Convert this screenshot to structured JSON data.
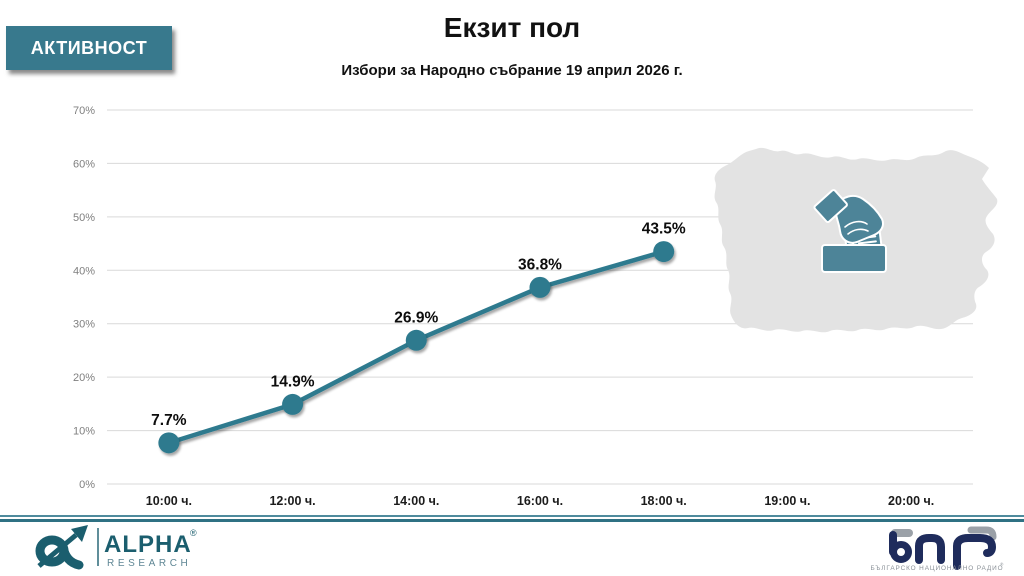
{
  "header": {
    "badge": "АКТИВНОСТ",
    "title": "Екзит пол",
    "subtitle": "Избори за Народно събрание 19 април 2026 г."
  },
  "chart_data": {
    "type": "line",
    "title": "Екзит пол",
    "subtitle": "Избори за Народно събрание 19 април 2026 г.",
    "categories": [
      "10:00 ч.",
      "12:00 ч.",
      "14:00 ч.",
      "16:00 ч.",
      "18:00 ч.",
      "19:00 ч.",
      "20:00 ч."
    ],
    "series": [
      {
        "name": "АКТИВНОСТ",
        "values": [
          7.7,
          14.9,
          26.9,
          36.8,
          43.5,
          null,
          null
        ]
      }
    ],
    "point_labels": [
      "7.7%",
      "14.9%",
      "26.9%",
      "36.8%",
      "43.5%"
    ],
    "xlabel": "",
    "ylabel": "",
    "ylim": [
      0,
      70
    ],
    "ytick_step": 10,
    "ytick_suffix": "%",
    "grid": true,
    "legend": "none",
    "line_color": "#2F7A8E",
    "marker_color": "#2F7A8E"
  },
  "map": {
    "label": "bulgaria-map",
    "fill": "#E3E3E3"
  },
  "icon": {
    "label": "ballot-box-icon",
    "color": "#4D8498"
  },
  "footer": {
    "alpha": {
      "brand": "ALPHA",
      "reg": "®",
      "sub": "RESEARCH"
    },
    "bnr": {
      "letters": "бнр",
      "caption": "БЪЛГАРСКО НАЦИОНАЛНО РАДИО",
      "reg": "®"
    }
  },
  "colors": {
    "accent_teal": "#38798D",
    "grid_gray": "#D9D9D9",
    "map_gray": "#E3E3E3",
    "alpha_teal": "#1B5E6E",
    "bnr_navy": "#1F2C5C",
    "bnr_gray": "#9BA1A8"
  }
}
